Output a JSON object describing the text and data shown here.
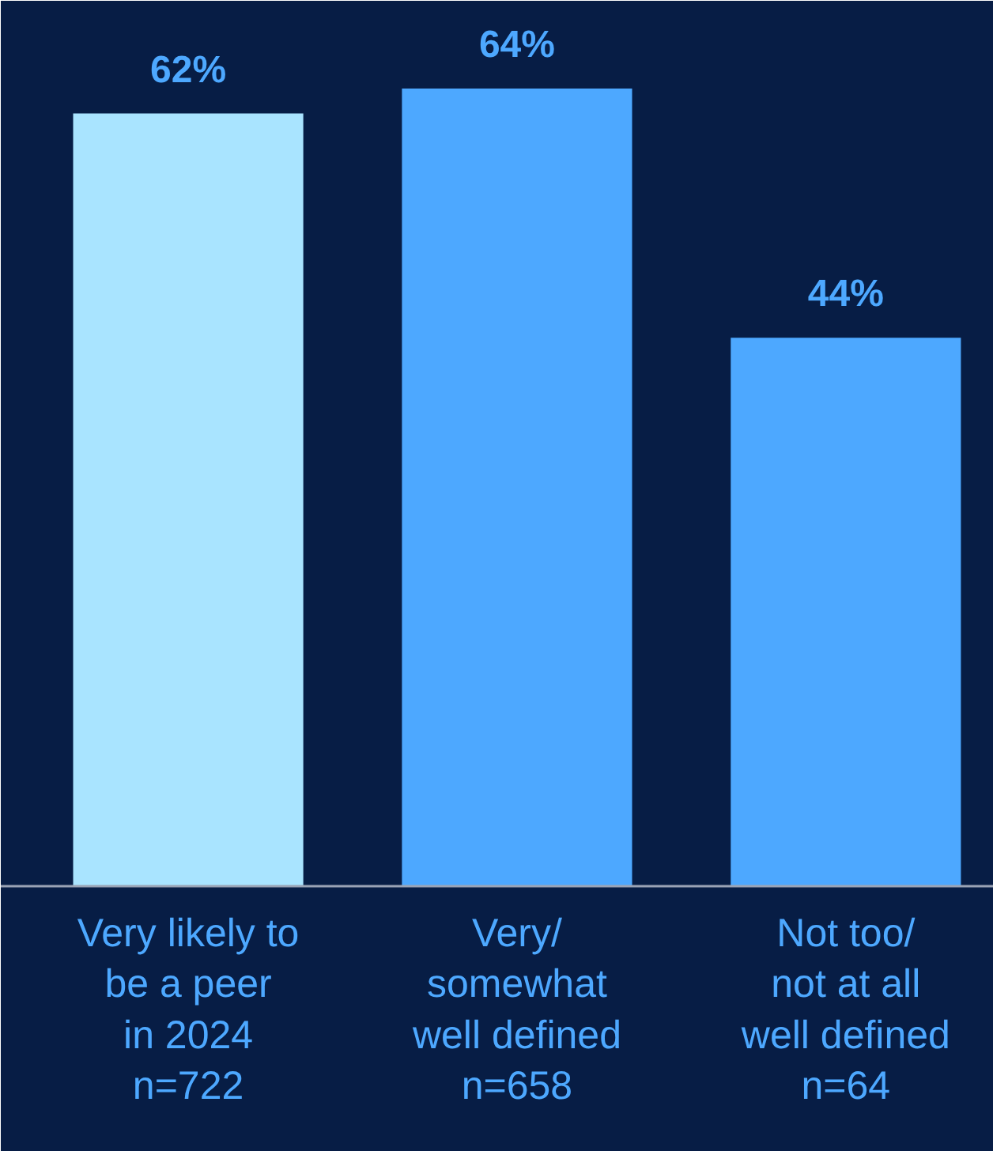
{
  "chart_data": {
    "type": "bar",
    "categories": [
      "Very likely to\nbe a peer\nin 2024\nn=722",
      "Very/\nsomewhat\nwell defined\nn=658",
      "Not too/\nnot at all\nwell defined\nn=64"
    ],
    "values": [
      62,
      64,
      44
    ],
    "colors": [
      "#a9e4ff",
      "#4da8ff",
      "#4da8ff"
    ],
    "value_labels": [
      "62%",
      "64%",
      "44%"
    ]
  }
}
